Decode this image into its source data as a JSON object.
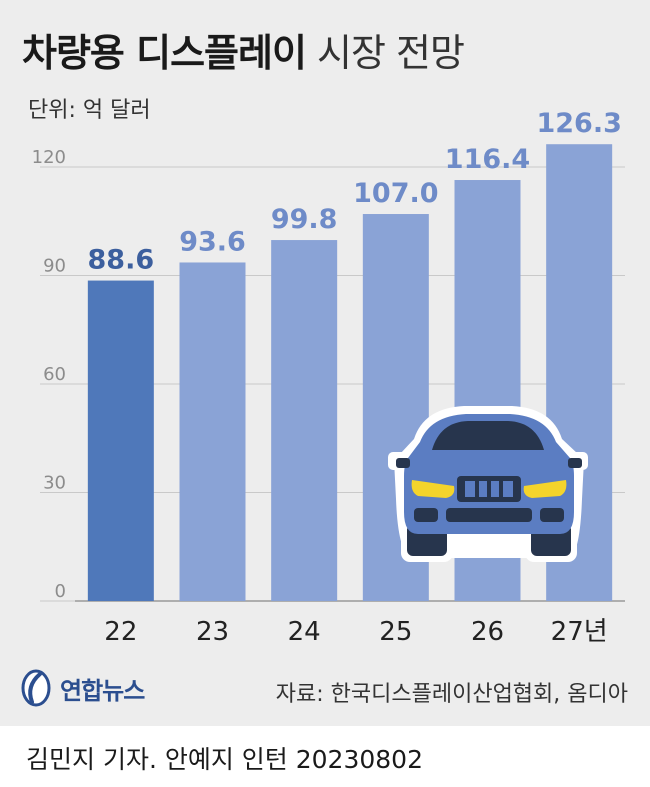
{
  "title": {
    "bold": "차량용 디스플레이",
    "light": "시장 전망"
  },
  "unit_label": "단위: 억 달러",
  "chart_data": {
    "type": "bar",
    "categories": [
      "22",
      "23",
      "24",
      "25",
      "26",
      "27년"
    ],
    "values": [
      88.6,
      93.6,
      99.8,
      107.0,
      116.4,
      126.3
    ],
    "value_labels": [
      "88.6",
      "93.6",
      "99.8",
      "107.0",
      "116.4",
      "126.3"
    ],
    "title": "차량용 디스플레이 시장 전망",
    "xlabel": "",
    "ylabel": "단위: 억 달러",
    "ylim": [
      0,
      130
    ],
    "yticks": [
      0,
      30,
      60,
      90,
      120
    ],
    "grid": true,
    "legend": "none"
  },
  "colors": {
    "highlight_bar": "#4f78ba",
    "bar": "#8aa3d6",
    "label_first": "#3c5f9e",
    "label": "#6e8bc8",
    "grid": "#c9c9c9",
    "tick": "#8c8c8c"
  },
  "source": "자료: 한국디스플레이산업협회, 옴디아",
  "logo_text": "연합뉴스",
  "credit": "김민지 기자. 안예지 인턴  20230802"
}
